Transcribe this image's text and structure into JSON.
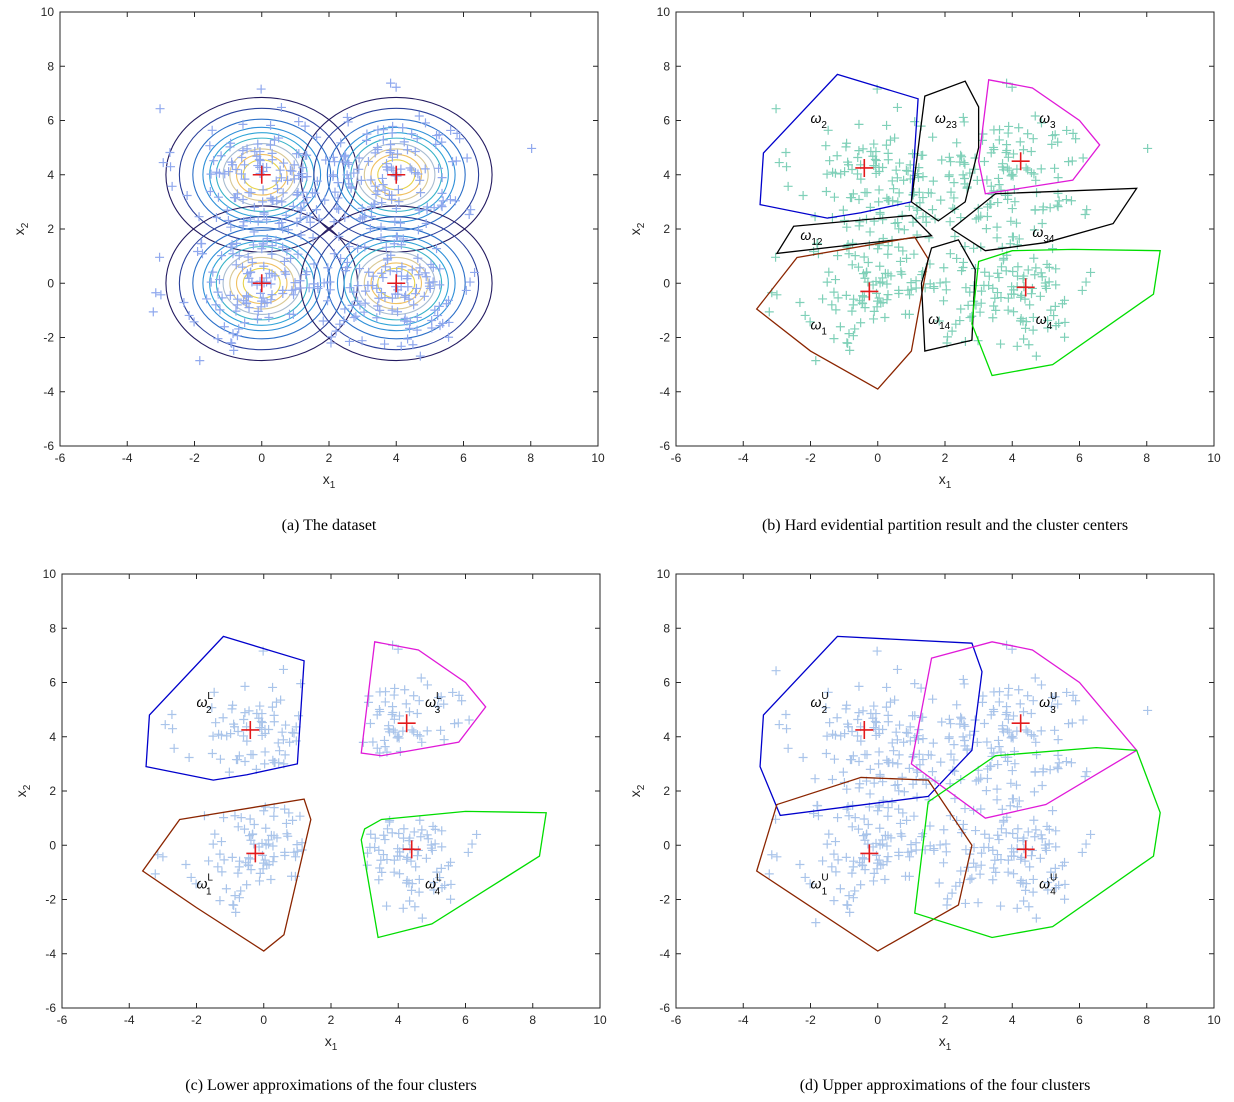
{
  "chart_data": [
    {
      "type": "scatter",
      "caption": "(a)  The dataset",
      "xlabel": "x",
      "xlabel_sub": "1",
      "ylabel": "x",
      "ylabel_sub": "2",
      "xlim": [
        -6,
        10
      ],
      "ylim": [
        -6,
        10
      ],
      "xticks": [
        "-6",
        "-4",
        "-2",
        "0",
        "2",
        "4",
        "6",
        "8",
        "10"
      ],
      "yticks": [
        "-6",
        "-4",
        "-2",
        "0",
        "2",
        "4",
        "6",
        "8",
        "10"
      ],
      "point_color": "#8fa8ee",
      "center_color": "#e31a1c",
      "gaussians": [
        {
          "cx": 0,
          "cy": 4
        },
        {
          "cx": 4,
          "cy": 4
        },
        {
          "cx": 0,
          "cy": 0
        },
        {
          "cx": 4,
          "cy": 0
        }
      ],
      "contour_radii": [
        0.55,
        0.75,
        0.95,
        1.15,
        1.35,
        1.55,
        1.75,
        2.05,
        2.45,
        2.85
      ],
      "contour_colors": [
        "#e6d24a",
        "#f0c060",
        "#d8c894",
        "#a8bcd0",
        "#39b3c8",
        "#2fa4d8",
        "#2e8fd8",
        "#2b6fc8",
        "#2a3f9a",
        "#231a60"
      ],
      "centers": [
        [
          0,
          4
        ],
        [
          4,
          4
        ],
        [
          0,
          0
        ],
        [
          4,
          0
        ]
      ],
      "annotations": []
    },
    {
      "type": "scatter",
      "caption": "(b)  Hard evidential partition result and the cluster centers",
      "xlabel": "x",
      "xlabel_sub": "1",
      "ylabel": "x",
      "ylabel_sub": "2",
      "xlim": [
        -6,
        10
      ],
      "ylim": [
        -6,
        10
      ],
      "xticks": [
        "-6",
        "-4",
        "-2",
        "0",
        "2",
        "4",
        "6",
        "8",
        "10"
      ],
      "yticks": [
        "-6",
        "-4",
        "-2",
        "0",
        "2",
        "4",
        "6",
        "8",
        "10"
      ],
      "point_color": "#7fd0b8",
      "center_color": "#e31a1c",
      "centers": [
        [
          -0.4,
          4.25
        ],
        [
          4.25,
          4.5
        ],
        [
          -0.25,
          -0.3
        ],
        [
          4.4,
          -0.15
        ]
      ],
      "hulls": [
        {
          "color": "#0000cc",
          "points": [
            [
              -1.2,
              7.7
            ],
            [
              1.2,
              6.8
            ],
            [
              1.0,
              3.0
            ],
            [
              -0.5,
              2.6
            ],
            [
              -1.5,
              2.4
            ],
            [
              -3.5,
              2.9
            ],
            [
              -3.4,
              4.8
            ]
          ]
        },
        {
          "color": "#000000",
          "points": [
            [
              1.4,
              6.9
            ],
            [
              2.6,
              7.45
            ],
            [
              3.0,
              6.5
            ],
            [
              3.0,
              5.0
            ],
            [
              2.6,
              3.0
            ],
            [
              1.8,
              2.3
            ],
            [
              1.0,
              3.0
            ]
          ]
        },
        {
          "color": "#e01ad8",
          "points": [
            [
              3.3,
              7.5
            ],
            [
              4.6,
              7.2
            ],
            [
              6.0,
              6.0
            ],
            [
              6.6,
              5.1
            ],
            [
              5.8,
              3.8
            ],
            [
              3.2,
              3.3
            ],
            [
              3.0,
              4.5
            ]
          ]
        },
        {
          "color": "#000000",
          "points": [
            [
              -2.5,
              2.1
            ],
            [
              1.0,
              2.5
            ],
            [
              1.6,
              1.75
            ],
            [
              -3.0,
              1.1
            ]
          ]
        },
        {
          "color": "#000000",
          "points": [
            [
              2.2,
              2.0
            ],
            [
              3.5,
              3.3
            ],
            [
              7.7,
              3.5
            ],
            [
              7.0,
              2.2
            ],
            [
              5.0,
              1.5
            ],
            [
              3.2,
              1.2
            ]
          ]
        },
        {
          "color": "#8b2500",
          "points": [
            [
              -2.4,
              0.95
            ],
            [
              1.1,
              1.7
            ],
            [
              1.5,
              0.9
            ],
            [
              1.0,
              -2.5
            ],
            [
              0.0,
              -3.9
            ],
            [
              -2.0,
              -2.5
            ],
            [
              -3.6,
              -0.95
            ]
          ]
        },
        {
          "color": "#000000",
          "points": [
            [
              1.6,
              1.3
            ],
            [
              2.4,
              1.6
            ],
            [
              2.9,
              0.5
            ],
            [
              2.8,
              -2.1
            ],
            [
              1.4,
              -2.5
            ],
            [
              1.3,
              0.0
            ]
          ]
        },
        {
          "color": "#00dd00",
          "points": [
            [
              3.0,
              0.8
            ],
            [
              4.0,
              1.2
            ],
            [
              5.8,
              1.25
            ],
            [
              8.4,
              1.2
            ],
            [
              8.2,
              -0.4
            ],
            [
              5.2,
              -3.0
            ],
            [
              3.4,
              -3.4
            ],
            [
              2.8,
              -1.5
            ]
          ]
        }
      ],
      "annotations": [
        {
          "base": "ω",
          "sub": "2",
          "sup": "",
          "x": -2.0,
          "y": 5.9
        },
        {
          "base": "ω",
          "sub": "23",
          "sup": "",
          "x": 1.7,
          "y": 5.9
        },
        {
          "base": "ω",
          "sub": "3",
          "sup": "",
          "x": 4.8,
          "y": 5.9
        },
        {
          "base": "ω",
          "sub": "12",
          "sup": "",
          "x": -2.3,
          "y": 1.6
        },
        {
          "base": "ω",
          "sub": "34",
          "sup": "",
          "x": 4.6,
          "y": 1.7
        },
        {
          "base": "ω",
          "sub": "14",
          "sup": "",
          "x": 1.5,
          "y": -1.5
        },
        {
          "base": "ω",
          "sub": "1",
          "sup": "",
          "x": -2.0,
          "y": -1.7
        },
        {
          "base": "ω",
          "sub": "4",
          "sup": "",
          "x": 4.7,
          "y": -1.5
        }
      ]
    },
    {
      "type": "scatter",
      "caption": "(c)  Lower approximations of the four clusters",
      "xlabel": "x",
      "xlabel_sub": "1",
      "ylabel": "x",
      "ylabel_sub": "2",
      "xlim": [
        -6,
        10
      ],
      "ylim": [
        -6,
        10
      ],
      "xticks": [
        "-6",
        "-4",
        "-2",
        "0",
        "2",
        "4",
        "6",
        "8",
        "10"
      ],
      "yticks": [
        "-6",
        "-4",
        "-2",
        "0",
        "2",
        "4",
        "6",
        "8",
        "10"
      ],
      "point_color": "#a9c4ea",
      "center_color": "#e31a1c",
      "centers": [
        [
          -0.4,
          4.25
        ],
        [
          4.25,
          4.5
        ],
        [
          -0.25,
          -0.3
        ],
        [
          4.4,
          -0.15
        ]
      ],
      "hulls": [
        {
          "color": "#0000cc",
          "points": [
            [
              -1.2,
              7.7
            ],
            [
              1.2,
              6.8
            ],
            [
              1.0,
              3.0
            ],
            [
              -0.5,
              2.6
            ],
            [
              -1.5,
              2.4
            ],
            [
              -3.5,
              2.9
            ],
            [
              -3.4,
              4.8
            ]
          ]
        },
        {
          "color": "#e01ad8",
          "points": [
            [
              3.3,
              7.5
            ],
            [
              4.6,
              7.2
            ],
            [
              6.0,
              6.0
            ],
            [
              6.6,
              5.1
            ],
            [
              5.8,
              3.8
            ],
            [
              3.5,
              3.3
            ],
            [
              2.9,
              3.4
            ]
          ]
        },
        {
          "color": "#8b2500",
          "points": [
            [
              -2.5,
              0.95
            ],
            [
              1.2,
              1.7
            ],
            [
              1.4,
              0.95
            ],
            [
              0.6,
              -3.3
            ],
            [
              0.0,
              -3.9
            ],
            [
              -2.0,
              -2.3
            ],
            [
              -3.6,
              -0.95
            ]
          ]
        },
        {
          "color": "#00dd00",
          "points": [
            [
              3.0,
              0.6
            ],
            [
              3.5,
              0.95
            ],
            [
              6.0,
              1.25
            ],
            [
              8.4,
              1.2
            ],
            [
              8.2,
              -0.4
            ],
            [
              5.0,
              -2.9
            ],
            [
              3.4,
              -3.4
            ],
            [
              2.9,
              0.2
            ]
          ]
        }
      ],
      "annotations": [
        {
          "base": "ω",
          "sub": "2",
          "sup": "L",
          "x": -2.0,
          "y": 5.1
        },
        {
          "base": "ω",
          "sub": "3",
          "sup": "L",
          "x": 4.8,
          "y": 5.1
        },
        {
          "base": "ω",
          "sub": "1",
          "sup": "L",
          "x": -2.0,
          "y": -1.6
        },
        {
          "base": "ω",
          "sub": "4",
          "sup": "L",
          "x": 4.8,
          "y": -1.6
        }
      ]
    },
    {
      "type": "scatter",
      "caption": "(d)  Upper approximations of the four clusters",
      "xlabel": "x",
      "xlabel_sub": "1",
      "ylabel": "x",
      "ylabel_sub": "2",
      "xlim": [
        -6,
        10
      ],
      "ylim": [
        -6,
        10
      ],
      "xticks": [
        "-6",
        "-4",
        "-2",
        "0",
        "2",
        "4",
        "6",
        "8",
        "10"
      ],
      "yticks": [
        "-6",
        "-4",
        "-2",
        "0",
        "2",
        "4",
        "6",
        "8",
        "10"
      ],
      "point_color": "#a9c4ea",
      "center_color": "#e31a1c",
      "centers": [
        [
          -0.4,
          4.25
        ],
        [
          4.25,
          4.5
        ],
        [
          -0.25,
          -0.3
        ],
        [
          4.4,
          -0.15
        ]
      ],
      "hulls": [
        {
          "color": "#0000cc",
          "points": [
            [
              -1.2,
              7.7
            ],
            [
              2.8,
              7.45
            ],
            [
              3.1,
              6.4
            ],
            [
              2.8,
              3.5
            ],
            [
              1.5,
              1.8
            ],
            [
              -2.9,
              1.1
            ],
            [
              -3.5,
              2.9
            ],
            [
              -3.4,
              4.8
            ]
          ]
        },
        {
          "color": "#e01ad8",
          "points": [
            [
              1.6,
              6.9
            ],
            [
              3.4,
              7.5
            ],
            [
              4.6,
              7.2
            ],
            [
              6.0,
              6.0
            ],
            [
              7.7,
              3.5
            ],
            [
              5.0,
              1.5
            ],
            [
              3.2,
              1.0
            ],
            [
              1.0,
              3.0
            ]
          ]
        },
        {
          "color": "#8b2500",
          "points": [
            [
              -3.0,
              1.5
            ],
            [
              -0.5,
              2.5
            ],
            [
              1.5,
              2.4
            ],
            [
              2.8,
              0.0
            ],
            [
              2.4,
              -2.2
            ],
            [
              0.0,
              -3.9
            ],
            [
              -3.6,
              -0.95
            ]
          ]
        },
        {
          "color": "#00dd00",
          "points": [
            [
              1.5,
              1.6
            ],
            [
              3.5,
              3.3
            ],
            [
              6.5,
              3.6
            ],
            [
              7.7,
              3.5
            ],
            [
              8.4,
              1.2
            ],
            [
              8.2,
              -0.4
            ],
            [
              5.2,
              -3.0
            ],
            [
              3.4,
              -3.4
            ],
            [
              1.1,
              -2.5
            ]
          ]
        }
      ],
      "annotations": [
        {
          "base": "ω",
          "sub": "2",
          "sup": "U",
          "x": -2.0,
          "y": 5.1
        },
        {
          "base": "ω",
          "sub": "3",
          "sup": "U",
          "x": 4.8,
          "y": 5.1
        },
        {
          "base": "ω",
          "sub": "1",
          "sup": "U",
          "x": -2.0,
          "y": -1.6
        },
        {
          "base": "ω",
          "sub": "4",
          "sup": "U",
          "x": 4.8,
          "y": -1.6
        }
      ]
    }
  ]
}
